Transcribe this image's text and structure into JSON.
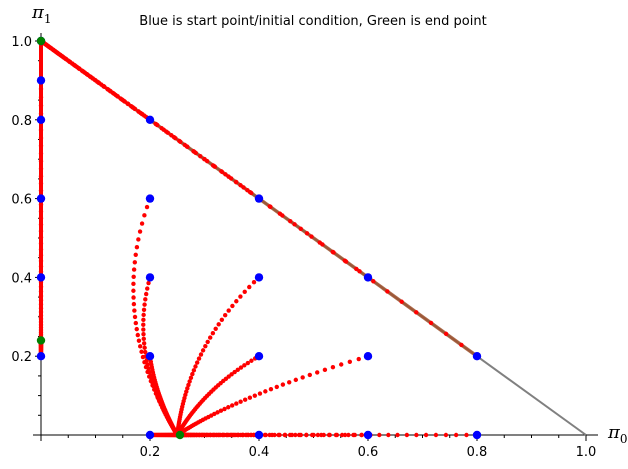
{
  "chart_data": {
    "type": "scatter",
    "title": "Blue is start point/initial condition, Green is end point",
    "xlabel": "π",
    "xlabel_sub": "0",
    "ylabel": "π",
    "ylabel_sub": "1",
    "xlim": [
      0,
      1.0
    ],
    "ylim": [
      0,
      1.0
    ],
    "x_ticks": [
      0.2,
      0.4,
      0.6,
      0.8,
      1.0
    ],
    "y_ticks": [
      0.2,
      0.4,
      0.6,
      0.8,
      1.0
    ],
    "x_tick_labels": [
      "0.2",
      "0.4",
      "0.6",
      "0.8",
      "1.0"
    ],
    "y_tick_labels": [
      "0.2",
      "0.4",
      "0.6",
      "0.8",
      "1.0"
    ],
    "grid": false,
    "colors": {
      "start": "#0000ff",
      "end": "#008000",
      "trajectory": "#ff0000",
      "boundary": "#808080",
      "overlap": "#a0522d"
    },
    "boundary": {
      "from": [
        0,
        1.0
      ],
      "to": [
        1.0,
        0
      ]
    },
    "start_points": [
      {
        "x": 0.0,
        "y": 0.2
      },
      {
        "x": 0.0,
        "y": 0.4
      },
      {
        "x": 0.0,
        "y": 0.6
      },
      {
        "x": 0.0,
        "y": 0.8
      },
      {
        "x": 0.0,
        "y": 0.9
      },
      {
        "x": 0.0,
        "y": 1.0
      },
      {
        "x": 0.2,
        "y": 0.0
      },
      {
        "x": 0.2,
        "y": 0.2
      },
      {
        "x": 0.2,
        "y": 0.4
      },
      {
        "x": 0.2,
        "y": 0.6
      },
      {
        "x": 0.2,
        "y": 0.8
      },
      {
        "x": 0.4,
        "y": 0.0
      },
      {
        "x": 0.4,
        "y": 0.2
      },
      {
        "x": 0.4,
        "y": 0.4
      },
      {
        "x": 0.4,
        "y": 0.6
      },
      {
        "x": 0.6,
        "y": 0.0
      },
      {
        "x": 0.6,
        "y": 0.2
      },
      {
        "x": 0.6,
        "y": 0.4
      },
      {
        "x": 0.8,
        "y": 0.0
      },
      {
        "x": 0.8,
        "y": 0.2
      }
    ],
    "end_points": [
      {
        "x": 0.0,
        "y": 1.0
      },
      {
        "x": 0.0,
        "y": 0.24
      },
      {
        "x": 0.255,
        "y": 0.0
      }
    ],
    "trajectories": [
      {
        "from": [
          0.2,
          0.6
        ],
        "ctrl": [
          0.12,
          0.3
        ],
        "to": [
          0.25,
          0.0
        ]
      },
      {
        "from": [
          0.2,
          0.4
        ],
        "ctrl": [
          0.16,
          0.2
        ],
        "to": [
          0.25,
          0.0
        ]
      },
      {
        "from": [
          0.2,
          0.2
        ],
        "ctrl": [
          0.21,
          0.1
        ],
        "to": [
          0.25,
          0.0
        ]
      },
      {
        "from": [
          0.4,
          0.4
        ],
        "ctrl": [
          0.27,
          0.23
        ],
        "to": [
          0.25,
          0.0
        ]
      },
      {
        "from": [
          0.4,
          0.2
        ],
        "ctrl": [
          0.3,
          0.12
        ],
        "to": [
          0.25,
          0.0
        ]
      },
      {
        "from": [
          0.6,
          0.2
        ],
        "ctrl": [
          0.36,
          0.1
        ],
        "to": [
          0.25,
          0.0
        ]
      },
      {
        "from": [
          0.2,
          0.0
        ],
        "ctrl": [
          0.225,
          0.0
        ],
        "to": [
          0.255,
          0.0
        ]
      },
      {
        "from": [
          0.4,
          0.0
        ],
        "ctrl": [
          0.33,
          0.0
        ],
        "to": [
          0.255,
          0.0
        ]
      },
      {
        "from": [
          0.6,
          0.0
        ],
        "ctrl": [
          0.43,
          0.0
        ],
        "to": [
          0.255,
          0.0
        ]
      },
      {
        "from": [
          0.8,
          0.0
        ],
        "ctrl": [
          0.53,
          0.0
        ],
        "to": [
          0.255,
          0.0
        ]
      },
      {
        "from": [
          0.0,
          0.2
        ],
        "ctrl": [
          0.0,
          0.22
        ],
        "to": [
          0.0,
          0.24
        ]
      },
      {
        "from": [
          0.0,
          0.9
        ],
        "ctrl": [
          0.0,
          0.6
        ],
        "to": [
          0.0,
          0.24
        ]
      },
      {
        "from": [
          0.2,
          0.8
        ],
        "ctrl": [
          0.1,
          0.9
        ],
        "to": [
          0.0,
          1.0
        ]
      },
      {
        "from": [
          0.4,
          0.6
        ],
        "ctrl": [
          0.2,
          0.8
        ],
        "to": [
          0.0,
          1.0
        ]
      },
      {
        "from": [
          0.6,
          0.4
        ],
        "ctrl": [
          0.3,
          0.7
        ],
        "to": [
          0.0,
          1.0
        ]
      },
      {
        "from": [
          0.8,
          0.2
        ],
        "ctrl": [
          0.4,
          0.6
        ],
        "to": [
          0.0,
          1.0
        ]
      }
    ]
  }
}
